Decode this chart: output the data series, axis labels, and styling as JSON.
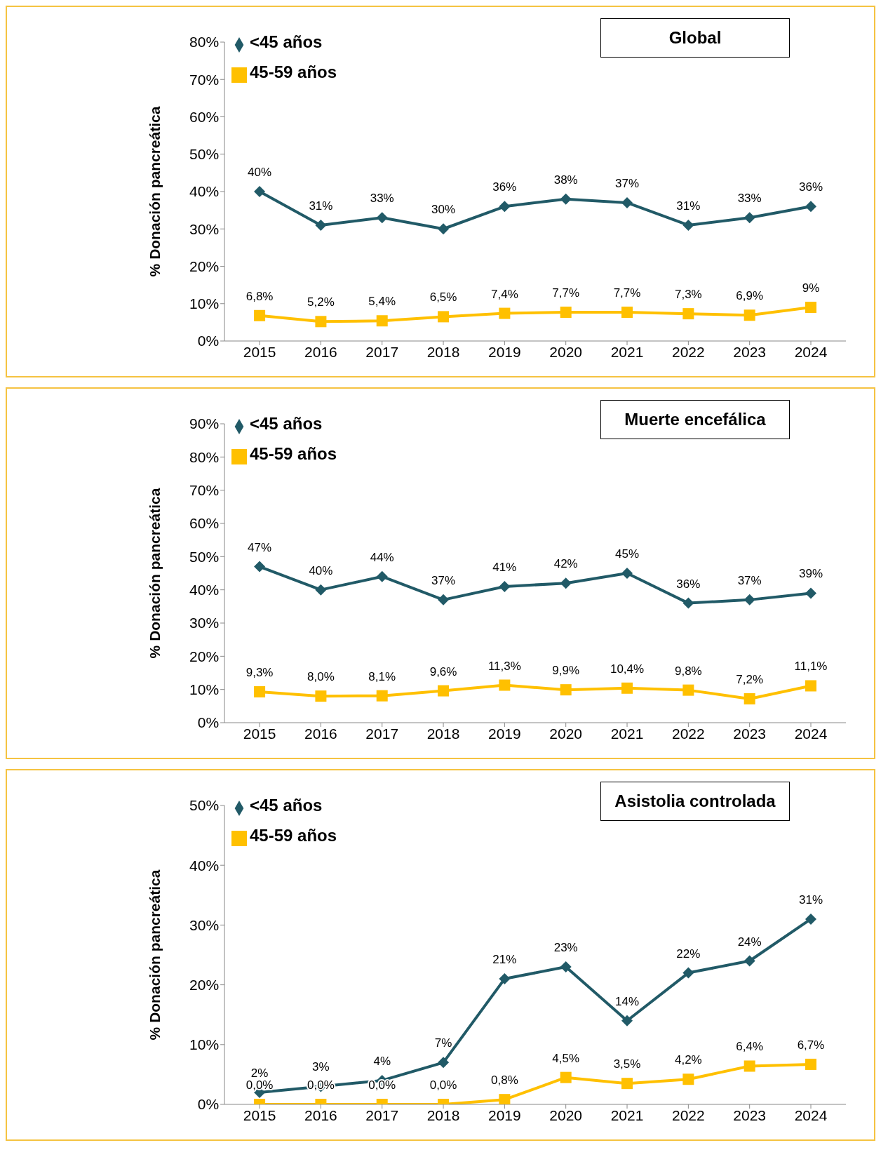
{
  "chart_data": [
    {
      "type": "line",
      "title": "Global",
      "ylabel": "% Donación pancreática",
      "categories": [
        "2015",
        "2016",
        "2017",
        "2018",
        "2019",
        "2020",
        "2021",
        "2022",
        "2023",
        "2024"
      ],
      "ylim": [
        0,
        80
      ],
      "yticks": [
        {
          "value": 0,
          "label": "0%"
        },
        {
          "value": 10,
          "label": "10%"
        },
        {
          "value": 20,
          "label": "20%"
        },
        {
          "value": 30,
          "label": "30%"
        },
        {
          "value": 40,
          "label": "40%"
        },
        {
          "value": 50,
          "label": "50%"
        },
        {
          "value": 60,
          "label": "60%"
        },
        {
          "value": 70,
          "label": "70%"
        },
        {
          "value": 80,
          "label": "80%"
        }
      ],
      "grid": false,
      "legend": "top left",
      "line_style": "solid",
      "series": [
        {
          "name": "<45 años",
          "color": "#215a67",
          "marker": "diamond",
          "values": [
            40,
            31,
            33,
            30,
            36,
            38,
            37,
            31,
            33,
            36
          ],
          "value_labels": [
            "40%",
            "31%",
            "33%",
            "30%",
            "36%",
            "38%",
            "37%",
            "31%",
            "33%",
            "36%"
          ]
        },
        {
          "name": "45-59 años",
          "color": "#ffc000",
          "marker": "square",
          "values": [
            6.8,
            5.2,
            5.4,
            6.5,
            7.4,
            7.7,
            7.7,
            7.3,
            6.9,
            9
          ],
          "value_labels": [
            "6,8%",
            "5,2%",
            "5,4%",
            "6,5%",
            "7,4%",
            "7,7%",
            "7,7%",
            "7,3%",
            "6,9%",
            "9%"
          ]
        }
      ]
    },
    {
      "type": "line",
      "title": "Muerte encefálica",
      "ylabel": "% Donación pancreática",
      "categories": [
        "2015",
        "2016",
        "2017",
        "2018",
        "2019",
        "2020",
        "2021",
        "2022",
        "2023",
        "2024"
      ],
      "ylim": [
        0,
        90
      ],
      "yticks": [
        {
          "value": 0,
          "label": "0%"
        },
        {
          "value": 10,
          "label": "10%"
        },
        {
          "value": 20,
          "label": "20%"
        },
        {
          "value": 30,
          "label": "30%"
        },
        {
          "value": 40,
          "label": "40%"
        },
        {
          "value": 50,
          "label": "50%"
        },
        {
          "value": 60,
          "label": "60%"
        },
        {
          "value": 70,
          "label": "70%"
        },
        {
          "value": 80,
          "label": "80%"
        },
        {
          "value": 90,
          "label": "90%"
        }
      ],
      "grid": false,
      "legend": "top left",
      "line_style": "solid",
      "series": [
        {
          "name": "<45 años",
          "color": "#215a67",
          "marker": "diamond",
          "values": [
            47,
            40,
            44,
            37,
            41,
            42,
            45,
            36,
            37,
            39
          ],
          "value_labels": [
            "47%",
            "40%",
            "44%",
            "37%",
            "41%",
            "42%",
            "45%",
            "36%",
            "37%",
            "39%"
          ]
        },
        {
          "name": "45-59 años",
          "color": "#ffc000",
          "marker": "square",
          "values": [
            9.3,
            8.0,
            8.1,
            9.6,
            11.3,
            9.9,
            10.4,
            9.8,
            7.2,
            11.1
          ],
          "value_labels": [
            "9,3%",
            "8,0%",
            "8,1%",
            "9,6%",
            "11,3%",
            "9,9%",
            "10,4%",
            "9,8%",
            "7,2%",
            "11,1%"
          ]
        }
      ]
    },
    {
      "type": "line",
      "title": "Asistolia controlada",
      "ylabel": "% Donación pancreática",
      "categories": [
        "2015",
        "2016",
        "2017",
        "2018",
        "2019",
        "2020",
        "2021",
        "2022",
        "2023",
        "2024"
      ],
      "ylim": [
        0,
        50
      ],
      "yticks": [
        {
          "value": 0,
          "label": "0%"
        },
        {
          "value": 10,
          "label": "10%"
        },
        {
          "value": 20,
          "label": "20%"
        },
        {
          "value": 30,
          "label": "30%"
        },
        {
          "value": 40,
          "label": "40%"
        },
        {
          "value": 50,
          "label": "50%"
        }
      ],
      "grid": false,
      "legend": "top left",
      "line_style": "solid",
      "series": [
        {
          "name": "<45 años",
          "color": "#215a67",
          "marker": "diamond",
          "values": [
            2,
            3,
            4,
            7,
            21,
            23,
            14,
            22,
            24,
            31
          ],
          "value_labels": [
            "2%",
            "3%",
            "4%",
            "7%",
            "21%",
            "23%",
            "14%",
            "22%",
            "24%",
            "31%"
          ]
        },
        {
          "name": "45-59 años",
          "color": "#ffc000",
          "marker": "square",
          "values": [
            0.0,
            0.0,
            0.0,
            0.0,
            0.8,
            4.5,
            3.5,
            4.2,
            6.4,
            6.7
          ],
          "value_labels": [
            "0,0%",
            "0,0%",
            "0,0%",
            "0,0%",
            "0,8%",
            "4,5%",
            "3,5%",
            "4,2%",
            "6,4%",
            "6,7%"
          ]
        }
      ]
    }
  ]
}
